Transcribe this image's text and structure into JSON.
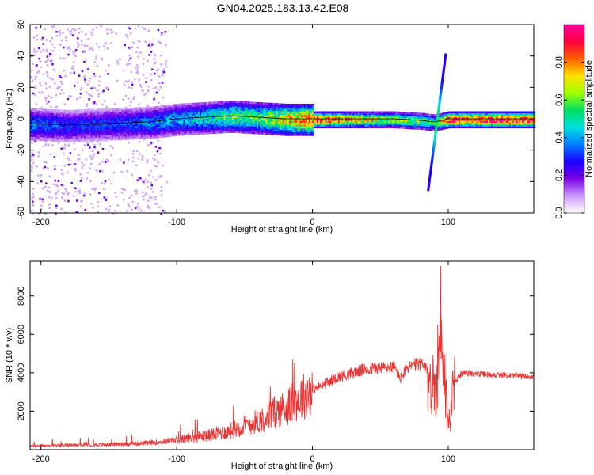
{
  "figure": {
    "title": "GN04.2025.183.13.42.E08"
  },
  "chart_data": [
    {
      "type": "heatmap",
      "title": "GN04.2025.183.13.42.E08",
      "xlabel": "Height of straight line (km)",
      "ylabel": "Frequency (Hz)",
      "xlim": [
        -208,
        163
      ],
      "ylim": [
        -60,
        60
      ],
      "xticks": [
        -200,
        -100,
        0,
        100
      ],
      "yticks": [
        -60,
        -40,
        -20,
        0,
        20,
        40,
        60
      ],
      "xtick_labels": [
        "-200",
        "-100",
        "0",
        "100"
      ],
      "ytick_labels": [
        "-60",
        "-40",
        "-20",
        "0",
        "20",
        "40",
        "60"
      ],
      "colorscale": [
        "#ffffff",
        "#cc99ff",
        "#7a00e6",
        "#1a00ff",
        "#0080ff",
        "#00e0e0",
        "#00e060",
        "#a0ff00",
        "#ffe000",
        "#ff6000",
        "#ff0040",
        "#ff00a0"
      ],
      "colorbar": {
        "label": "Normalized spectral amplitude",
        "range": [
          0,
          1
        ],
        "ticks": [
          0.0,
          0.2,
          0.4,
          0.6,
          0.8
        ],
        "tick_labels": [
          "0.0",
          "0.2",
          "0.4",
          "0.6",
          "0.8"
        ]
      },
      "ridge": {
        "x": [
          -208,
          -180,
          -150,
          -120,
          -100,
          -80,
          -60,
          -40,
          -20,
          0,
          40,
          60,
          80,
          90,
          100,
          163
        ],
        "frequency": [
          -3,
          -4,
          -3,
          -2,
          0,
          1,
          2,
          1,
          0,
          0,
          0,
          0,
          -1,
          -2,
          0,
          0
        ],
        "amplitude": [
          0.35,
          0.3,
          0.3,
          0.35,
          0.4,
          0.45,
          0.55,
          0.55,
          0.7,
          0.85,
          0.7,
          0.6,
          0.6,
          0.5,
          0.9,
          0.95
        ]
      },
      "chirp": {
        "x": [
          85,
          98
        ],
        "frequency": [
          -45,
          42
        ]
      }
    },
    {
      "type": "line",
      "xlabel": "Height of straight line (km)",
      "ylabel": "SNR (10 * v/v)",
      "xlim": [
        -208,
        163
      ],
      "ylim": [
        0,
        9800
      ],
      "xticks": [
        -200,
        -100,
        0,
        100
      ],
      "yticks": [
        2000,
        4000,
        6000,
        8000
      ],
      "xtick_labels": [
        "-200",
        "-100",
        "0",
        "100"
      ],
      "ytick_labels": [
        "2000",
        "4000",
        "6000",
        "8000"
      ],
      "color": "#ee3333",
      "envelope": {
        "x": [
          -208,
          -160,
          -120,
          -100,
          -80,
          -60,
          -40,
          -20,
          0,
          20,
          40,
          60,
          65,
          70,
          80,
          85,
          90,
          93,
          95,
          97,
          100,
          105,
          110,
          130,
          163
        ],
        "y": [
          200,
          250,
          350,
          500,
          700,
          1000,
          1500,
          2200,
          3100,
          3800,
          4200,
          4300,
          3700,
          4300,
          4500,
          4000,
          3000,
          5000,
          7000,
          4000,
          1200,
          3500,
          4000,
          3900,
          3800
        ]
      }
    }
  ]
}
